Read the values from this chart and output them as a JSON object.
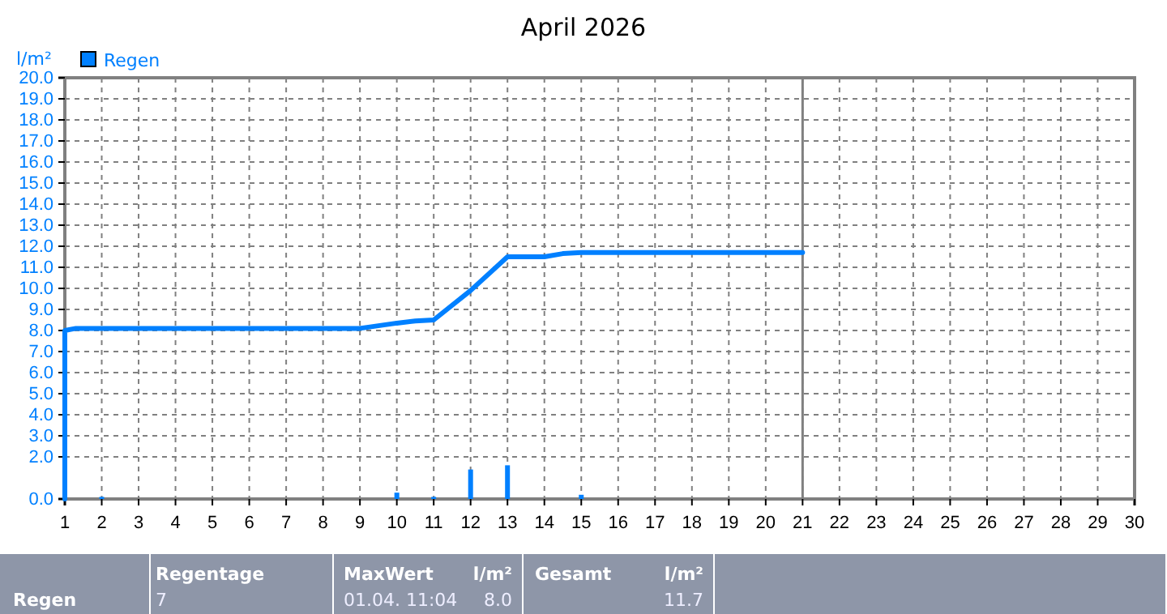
{
  "chart_data": {
    "type": "line",
    "title": "April 2026",
    "ylabel": "l/m²",
    "xlim": [
      1,
      30
    ],
    "xticks": [
      1,
      2,
      3,
      4,
      5,
      6,
      7,
      8,
      9,
      10,
      11,
      12,
      13,
      14,
      15,
      16,
      17,
      18,
      19,
      20,
      21,
      22,
      23,
      24,
      25,
      26,
      27,
      28,
      29,
      30
    ],
    "ylim": [
      0,
      20
    ],
    "yticks": [
      {
        "value": 0,
        "label": "0.0"
      },
      {
        "value": 2,
        "label": "2.0"
      },
      {
        "value": 3,
        "label": "3.0"
      },
      {
        "value": 4,
        "label": "4.0"
      },
      {
        "value": 5,
        "label": "5.0"
      },
      {
        "value": 6,
        "label": "6.0"
      },
      {
        "value": 7,
        "label": "7.0"
      },
      {
        "value": 8,
        "label": "8.0"
      },
      {
        "value": 9,
        "label": "9.0"
      },
      {
        "value": 10,
        "label": "10.0"
      },
      {
        "value": 11,
        "label": "11.0"
      },
      {
        "value": 12,
        "label": "12.0"
      },
      {
        "value": 13,
        "label": "13.0"
      },
      {
        "value": 14,
        "label": "14.0"
      },
      {
        "value": 15,
        "label": "15.0"
      },
      {
        "value": 16,
        "label": "16.0"
      },
      {
        "value": 17,
        "label": "17.0"
      },
      {
        "value": 18,
        "label": "18.0"
      },
      {
        "value": 19,
        "label": "19.0"
      },
      {
        "value": 20,
        "label": "20.0"
      }
    ],
    "grid": true,
    "legend": "top left",
    "line_style": "solid",
    "marker": "none",
    "series": [
      {
        "type": "bar",
        "name": "Regen",
        "color": "#0080ff",
        "x": [
          2,
          10,
          11,
          12,
          13,
          15
        ],
        "values": [
          0.1,
          0.3,
          0.1,
          1.4,
          1.6,
          0.2
        ]
      },
      {
        "color": "#0080ff",
        "x": [
          1,
          1,
          1.3,
          2,
          9,
          10,
          10.5,
          11,
          12,
          13,
          14,
          14.5,
          15,
          21
        ],
        "values": [
          0,
          8.0,
          8.1,
          8.1,
          8.1,
          8.35,
          8.45,
          8.5,
          9.9,
          11.5,
          11.5,
          11.65,
          11.7,
          11.7
        ]
      }
    ],
    "ref_lines": [
      {
        "axis": "x",
        "value": 21,
        "color": "#808080"
      }
    ],
    "annotations": [
      "Regen",
      "Regentage",
      "7",
      "MaxWert",
      "l/m²",
      "01.04. 11:04",
      "8.0",
      "Gesamt",
      "l/m²",
      "11.7"
    ]
  }
}
